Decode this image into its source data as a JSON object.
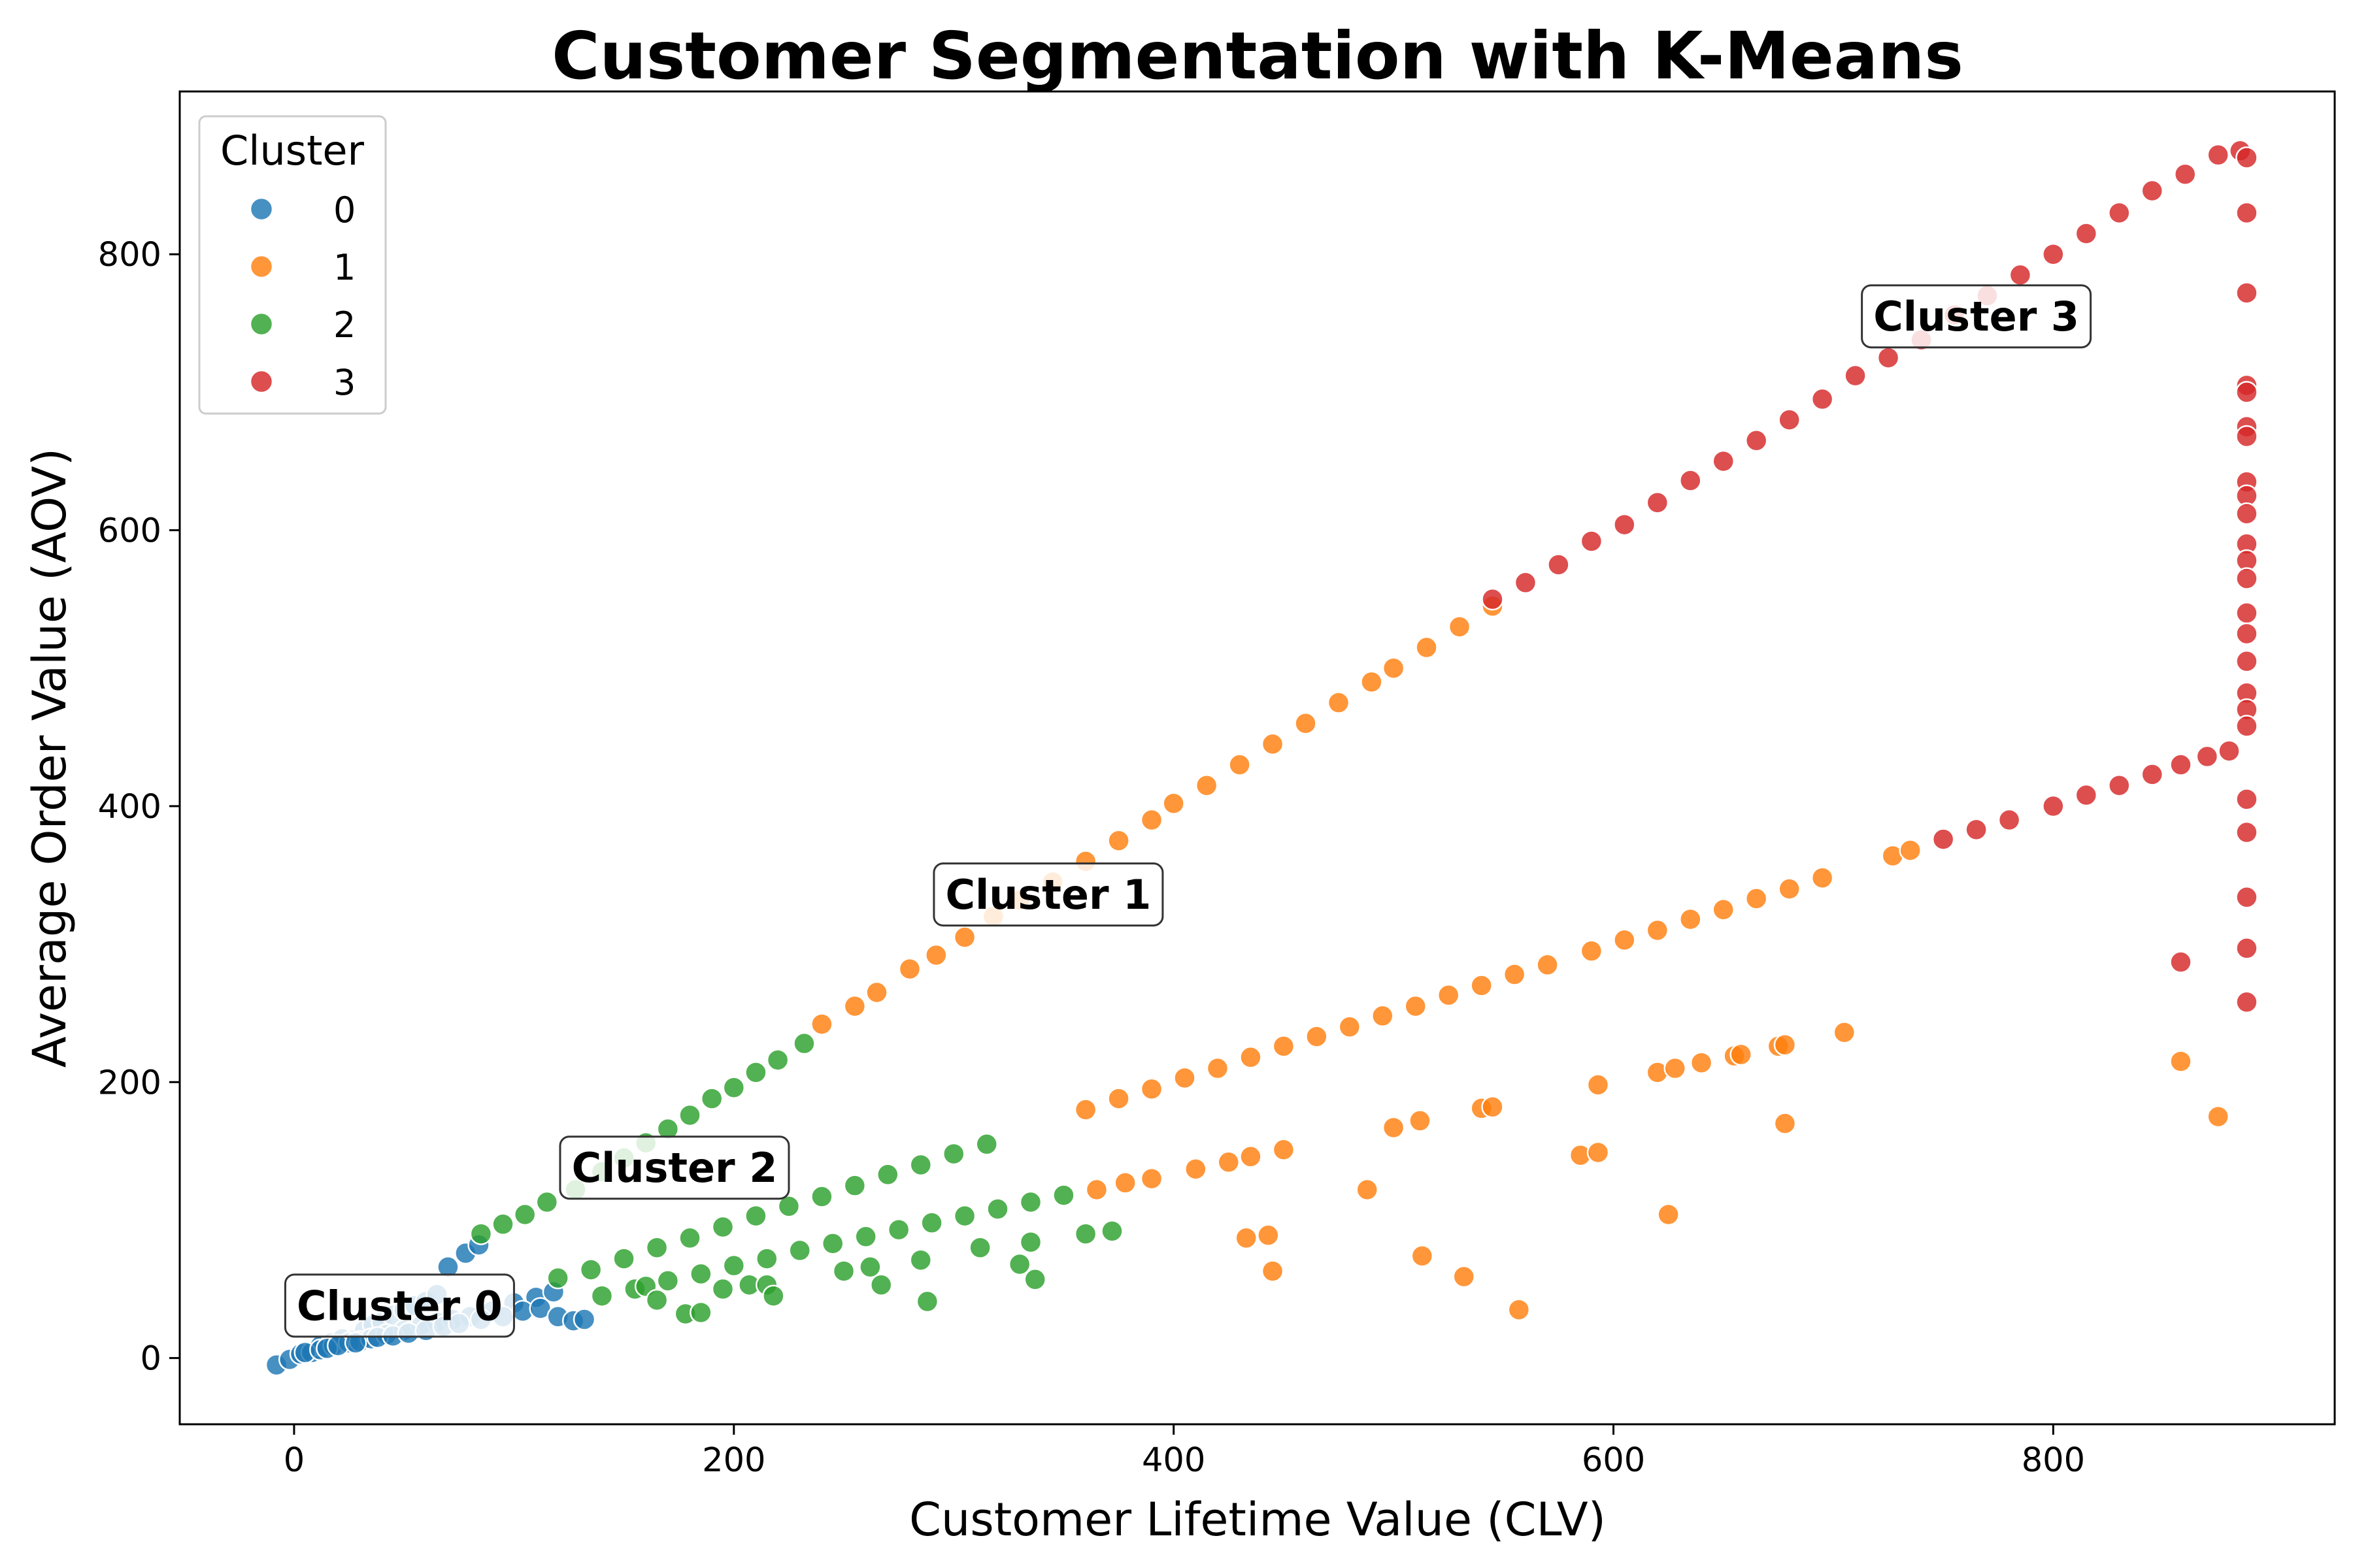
{
  "chart_data": {
    "type": "scatter",
    "title": "Customer Segmentation with K-Means",
    "xlabel": "Customer Lifetime Value (CLV)",
    "ylabel": "Average Order Value (AOV)",
    "xlim": [
      -52,
      928
    ],
    "ylim": [
      -48,
      918
    ],
    "xticks": [
      0,
      200,
      400,
      600,
      800
    ],
    "yticks": [
      0,
      200,
      400,
      600,
      800
    ],
    "grid": false,
    "legend": {
      "title": "Cluster",
      "placement": "top-left"
    },
    "colors": {
      "0": "#1f77b4",
      "1": "#ff7f0e",
      "2": "#2ca02c",
      "3": "#d62728"
    },
    "series": [
      {
        "name": "0",
        "points": [
          [
            -8,
            -5
          ],
          [
            -2,
            -1
          ],
          [
            3,
            3
          ],
          [
            8,
            4
          ],
          [
            12,
            9
          ],
          [
            17,
            11
          ],
          [
            22,
            14
          ],
          [
            27,
            13
          ],
          [
            32,
            20
          ],
          [
            36,
            24
          ],
          [
            40,
            26
          ],
          [
            45,
            31
          ],
          [
            50,
            35
          ],
          [
            55,
            38
          ],
          [
            60,
            41
          ],
          [
            65,
            46
          ],
          [
            70,
            66
          ],
          [
            78,
            76
          ],
          [
            84,
            82
          ],
          [
            5,
            4
          ],
          [
            12,
            6
          ],
          [
            18,
            9
          ],
          [
            25,
            11
          ],
          [
            30,
            12
          ],
          [
            35,
            14
          ],
          [
            42,
            17
          ],
          [
            50,
            20
          ],
          [
            58,
            24
          ],
          [
            65,
            26
          ],
          [
            72,
            28
          ],
          [
            80,
            30
          ],
          [
            90,
            34
          ],
          [
            100,
            40
          ],
          [
            110,
            44
          ],
          [
            118,
            48
          ],
          [
            15,
            7
          ],
          [
            20,
            9
          ],
          [
            28,
            11
          ],
          [
            38,
            15
          ],
          [
            45,
            16
          ],
          [
            52,
            18
          ],
          [
            60,
            20
          ],
          [
            68,
            23
          ],
          [
            75,
            25
          ],
          [
            85,
            28
          ],
          [
            95,
            30
          ],
          [
            104,
            34
          ],
          [
            112,
            36
          ],
          [
            120,
            30
          ],
          [
            127,
            27
          ],
          [
            132,
            28
          ]
        ]
      },
      {
        "name": "1",
        "points": [
          [
            240,
            242
          ],
          [
            255,
            255
          ],
          [
            265,
            265
          ],
          [
            280,
            282
          ],
          [
            292,
            292
          ],
          [
            305,
            305
          ],
          [
            318,
            320
          ],
          [
            330,
            332
          ],
          [
            345,
            345
          ],
          [
            360,
            360
          ],
          [
            375,
            375
          ],
          [
            390,
            390
          ],
          [
            400,
            402
          ],
          [
            415,
            415
          ],
          [
            430,
            430
          ],
          [
            445,
            445
          ],
          [
            460,
            460
          ],
          [
            475,
            475
          ],
          [
            490,
            490
          ],
          [
            500,
            500
          ],
          [
            515,
            515
          ],
          [
            530,
            530
          ],
          [
            545,
            545
          ],
          [
            360,
            180
          ],
          [
            375,
            188
          ],
          [
            390,
            195
          ],
          [
            405,
            203
          ],
          [
            420,
            210
          ],
          [
            435,
            218
          ],
          [
            450,
            226
          ],
          [
            465,
            233
          ],
          [
            480,
            240
          ],
          [
            495,
            248
          ],
          [
            510,
            255
          ],
          [
            525,
            263
          ],
          [
            540,
            270
          ],
          [
            555,
            278
          ],
          [
            570,
            285
          ],
          [
            590,
            295
          ],
          [
            605,
            303
          ],
          [
            620,
            310
          ],
          [
            635,
            318
          ],
          [
            650,
            325
          ],
          [
            665,
            333
          ],
          [
            680,
            340
          ],
          [
            695,
            348
          ],
          [
            727,
            364
          ],
          [
            735,
            368
          ],
          [
            365,
            122
          ],
          [
            378,
            127
          ],
          [
            390,
            130
          ],
          [
            410,
            137
          ],
          [
            425,
            142
          ],
          [
            435,
            146
          ],
          [
            450,
            151
          ],
          [
            433,
            87
          ],
          [
            443,
            89
          ],
          [
            445,
            63
          ],
          [
            488,
            122
          ],
          [
            500,
            167
          ],
          [
            512,
            172
          ],
          [
            513,
            74
          ],
          [
            532,
            59
          ],
          [
            540,
            181
          ],
          [
            545,
            182
          ],
          [
            557,
            35
          ],
          [
            585,
            147
          ],
          [
            593,
            149
          ],
          [
            593,
            198
          ],
          [
            620,
            207
          ],
          [
            625,
            104
          ],
          [
            628,
            210
          ],
          [
            640,
            214
          ],
          [
            655,
            219
          ],
          [
            658,
            220
          ],
          [
            675,
            226
          ],
          [
            678,
            227
          ],
          [
            678,
            170
          ],
          [
            705,
            236
          ],
          [
            858,
            215
          ],
          [
            875,
            175
          ]
        ]
      },
      {
        "name": "2",
        "points": [
          [
            85,
            90
          ],
          [
            95,
            97
          ],
          [
            105,
            104
          ],
          [
            115,
            113
          ],
          [
            128,
            122
          ],
          [
            140,
            135
          ],
          [
            150,
            145
          ],
          [
            160,
            156
          ],
          [
            170,
            166
          ],
          [
            180,
            176
          ],
          [
            190,
            188
          ],
          [
            200,
            196
          ],
          [
            210,
            207
          ],
          [
            220,
            216
          ],
          [
            232,
            228
          ],
          [
            120,
            58
          ],
          [
            135,
            64
          ],
          [
            150,
            72
          ],
          [
            165,
            80
          ],
          [
            180,
            87
          ],
          [
            195,
            95
          ],
          [
            210,
            103
          ],
          [
            225,
            110
          ],
          [
            240,
            117
          ],
          [
            255,
            125
          ],
          [
            270,
            133
          ],
          [
            285,
            140
          ],
          [
            300,
            148
          ],
          [
            315,
            155
          ],
          [
            140,
            45
          ],
          [
            155,
            50
          ],
          [
            170,
            56
          ],
          [
            185,
            61
          ],
          [
            200,
            67
          ],
          [
            215,
            72
          ],
          [
            230,
            78
          ],
          [
            245,
            83
          ],
          [
            260,
            88
          ],
          [
            275,
            93
          ],
          [
            290,
            98
          ],
          [
            305,
            103
          ],
          [
            320,
            108
          ],
          [
            335,
            113
          ],
          [
            350,
            118
          ],
          [
            360,
            90
          ],
          [
            372,
            92
          ],
          [
            160,
            52
          ],
          [
            165,
            42
          ],
          [
            178,
            32
          ],
          [
            185,
            33
          ],
          [
            195,
            50
          ],
          [
            207,
            53
          ],
          [
            215,
            53
          ],
          [
            218,
            45
          ],
          [
            250,
            63
          ],
          [
            262,
            66
          ],
          [
            267,
            53
          ],
          [
            285,
            71
          ],
          [
            288,
            41
          ],
          [
            312,
            80
          ],
          [
            330,
            68
          ],
          [
            335,
            84
          ],
          [
            337,
            57
          ]
        ]
      },
      {
        "name": "3",
        "points": [
          [
            545,
            550
          ],
          [
            560,
            562
          ],
          [
            575,
            575
          ],
          [
            590,
            592
          ],
          [
            605,
            604
          ],
          [
            620,
            620
          ],
          [
            635,
            636
          ],
          [
            650,
            650
          ],
          [
            665,
            665
          ],
          [
            680,
            680
          ],
          [
            695,
            695
          ],
          [
            710,
            712
          ],
          [
            725,
            725
          ],
          [
            740,
            738
          ],
          [
            755,
            756
          ],
          [
            770,
            770
          ],
          [
            785,
            785
          ],
          [
            800,
            800
          ],
          [
            815,
            815
          ],
          [
            830,
            830
          ],
          [
            845,
            846
          ],
          [
            860,
            858
          ],
          [
            875,
            872
          ],
          [
            885,
            875
          ],
          [
            750,
            376
          ],
          [
            765,
            383
          ],
          [
            780,
            390
          ],
          [
            800,
            400
          ],
          [
            815,
            408
          ],
          [
            830,
            415
          ],
          [
            845,
            423
          ],
          [
            858,
            430
          ],
          [
            870,
            436
          ],
          [
            880,
            440
          ],
          [
            888,
            870
          ],
          [
            888,
            830
          ],
          [
            888,
            772
          ],
          [
            888,
            705
          ],
          [
            888,
            700
          ],
          [
            888,
            675
          ],
          [
            888,
            668
          ],
          [
            888,
            635
          ],
          [
            888,
            625
          ],
          [
            888,
            612
          ],
          [
            888,
            590
          ],
          [
            888,
            578
          ],
          [
            888,
            565
          ],
          [
            888,
            540
          ],
          [
            888,
            525
          ],
          [
            888,
            505
          ],
          [
            888,
            482
          ],
          [
            888,
            470
          ],
          [
            888,
            458
          ],
          [
            888,
            405
          ],
          [
            888,
            381
          ],
          [
            888,
            334
          ],
          [
            888,
            297
          ],
          [
            888,
            258
          ],
          [
            858,
            287
          ]
        ]
      }
    ],
    "annotations": [
      {
        "text": "Cluster 0",
        "x": 48,
        "y": 38
      },
      {
        "text": "Cluster 1",
        "x": 343,
        "y": 336
      },
      {
        "text": "Cluster 2",
        "x": 173,
        "y": 138
      },
      {
        "text": "Cluster 3",
        "x": 765,
        "y": 755
      }
    ]
  }
}
